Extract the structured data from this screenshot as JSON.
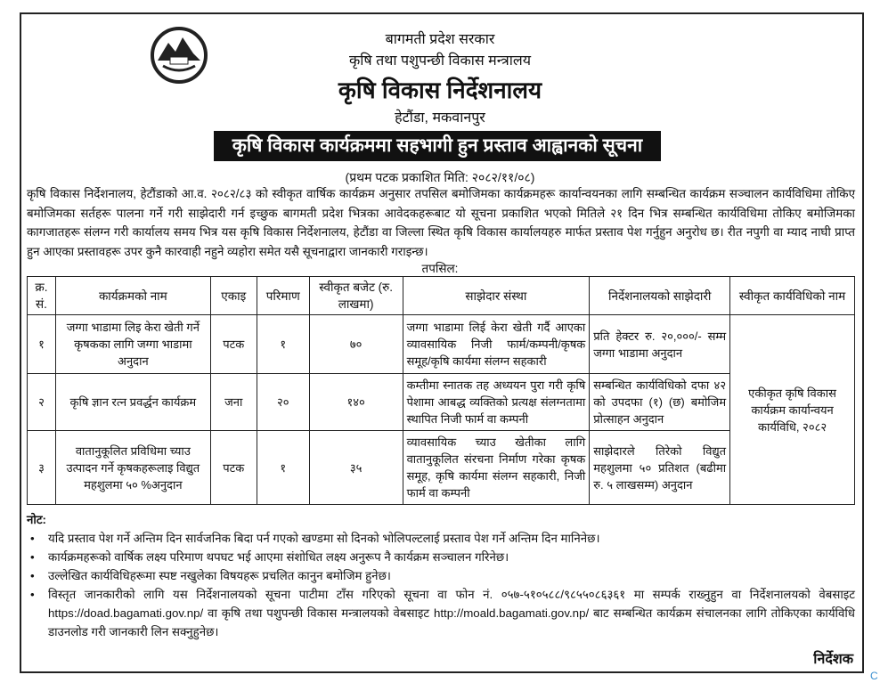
{
  "header": {
    "line1": "बागमती प्रदेश सरकार",
    "line2": "कृषि तथा पशुपन्छी विकास मन्त्रालय",
    "office": "कृषि विकास निर्देशनालय",
    "location": "हेटौंडा, मकवानपुर",
    "notice_title": "कृषि विकास कार्यक्रममा सहभागी हुन प्रस्ताव आह्वानको सूचना",
    "published": "(प्रथम पटक प्रकाशित मिति: २०८२/११/०८)"
  },
  "body": {
    "paragraph": "कृषि विकास निर्देशनालय, हेटौंडाको आ.व. २०८२/८३ को स्वीकृत वार्षिक कार्यक्रम अनुसार तपसिल बमोजिमका कार्यक्रमहरू कार्यान्वयनका लागि सम्बन्धित कार्यक्रम सञ्चालन कार्यविधिमा तोकिए बमोजिमका सर्तहरू पालना गर्ने गरी साझेदारी गर्न इच्छुक बागमती प्रदेश भित्रका आवेदकहरूबाट यो सूचना प्रकाशित भएको मितिले २१ दिन भित्र सम्बन्धित कार्यविधिमा तोकिए बमोजिमका कागजातहरू संलग्न गरी कार्यालय समय भित्र यस कृषि विकास निर्देशनालय, हेटौंडा वा जिल्ला स्थित कृषि विकास कार्यालयहरु मार्फत प्रस्ताव पेश गर्नुहुन अनुरोध छ। रीत नपुगी वा म्याद नाघी प्राप्त हुन आएका प्रस्तावहरू उपर कुनै कारवाही नहुने व्यहोरा समेत यसै सूचनाद्वारा जानकारी गराइन्छ।",
    "tapsil": "तपसिल:"
  },
  "table": {
    "headers": [
      "क्र. सं.",
      "कार्यक्रमको नाम",
      "एकाइ",
      "परिमाण",
      "स्वीकृत बजेट (रु. लाखमा)",
      "साझेदार संस्था",
      "निर्देशनालयको साझेदारी",
      "स्वीकृत कार्यविधिको नाम"
    ],
    "rows": [
      {
        "sn": "१",
        "name": "जग्गा भाडामा लिइ केरा खेती गर्ने कृषकका लागि जग्गा भाडामा अनुदान",
        "unit": "पटक",
        "qty": "१",
        "budget": "७०",
        "partner": "जग्गा भाडामा लिई केरा खेती गर्दै आएका व्यावसायिक निजी फार्म/कम्पनी/कृषक समूह/कृषि कार्यमा संलग्न सहकारी",
        "share": "प्रति हेक्टर रु. २०,०००/- सम्म जग्गा भाडामा अनुदान"
      },
      {
        "sn": "२",
        "name": "कृषि ज्ञान रत्न प्रवर्द्धन कार्यक्रम",
        "unit": "जना",
        "qty": "२०",
        "budget": "१४०",
        "partner": "कम्तीमा स्नातक तह अध्ययन पुरा गरी कृषि पेशामा आबद्ध व्यक्तिको प्रत्यक्ष संलग्नतामा स्थापित निजी फार्म वा कम्पनी",
        "share": "सम्बन्धित कार्यविधिको दफा ४२ को उपदफा (१) (छ) बमोजिम प्रोत्साहन अनुदान"
      },
      {
        "sn": "३",
        "name": "वातानुकूलित प्रविधिमा च्याउ उत्पादन गर्ने कृषकहरूलाइ विद्युत महशुलमा ५० %अनुदान",
        "unit": "पटक",
        "qty": "१",
        "budget": "३५",
        "partner": "व्यावसायिक च्याउ खेतीका लागि वातानुकूलित संरचना निर्माण गरेका कृषक समूह, कृषि कार्यमा संलग्न सहकारी, निजी फार्म वा कम्पनी",
        "share": "साझेदारले तिरेको विद्युत महशुलमा ५० प्रतिशत (बढीमा रु. ५ लाखसम्म) अनुदान"
      }
    ],
    "procedure": "एकीकृत कृषि विकास कार्यक्रम कार्यान्वयन कार्यविधि, २०८२"
  },
  "notes": {
    "title": "नोट:",
    "items": [
      "यदि प्रस्ताव पेश गर्ने अन्तिम दिन सार्वजनिक बिदा पर्न गएको खण्डमा सो दिनको भोलिपल्टलाई प्रस्ताव पेश गर्ने अन्तिम दिन मानिनेछ।",
      "कार्यक्रमहरूको वार्षिक लक्ष्य परिमाण थपघट भई आएमा संशोधित लक्ष्य अनुरूप नै कार्यक्रम सञ्चालन गरिनेछ।",
      "उल्लेखित कार्यविधिहरूमा स्पष्ट नखुलेका विषयहरू प्रचलित कानुन बमोजिम हुनेछ।",
      "विस्तृत जानकारीको लागि यस निर्देशनालयको सूचना पाटीमा टाँस गरिएको सूचना वा फोन नं. ०५७-५१०५८८/९८५५०८६३६१ मा सम्पर्क राख्नुहुन वा निर्देशनालयको वेबसाइट https://doad.bagamati.gov.np/ वा कृषि तथा पशुपन्छी विकास मन्त्रालयको वेबसाइट http://moald.bagamati.gov.np/ बाट सम्बन्धित कार्यक्रम संचालनका लागि तोकिएका कार्यविधि डाउनलोड गरी जानकारी लिन सक्नुहुनेछ।"
    ]
  },
  "signature": "निर्देशक",
  "corner_mark": "C",
  "colors": {
    "banner": "#111111",
    "text": "#111111"
  },
  "icons": {
    "logo": "nepal-emblem"
  }
}
